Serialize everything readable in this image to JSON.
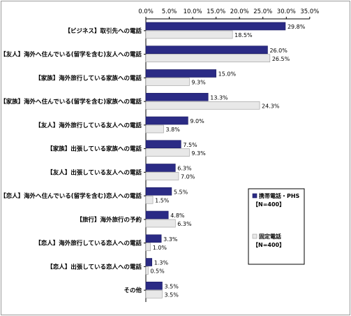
{
  "chart_data": {
    "type": "bar",
    "orientation": "horizontal",
    "categories": [
      "【ビジネス】取引先への電話",
      "【友人】海外へ住んでいる(留学を含む)友人への電話",
      "【家族】海外旅行している家族への電話",
      "【家族】海外へ住んでいる(留学を含む)家族への電話",
      "【友人】海外旅行している友人への電話",
      "【家族】出張している家族への電話",
      "【友人】出張している友人への電話",
      "【恋人】海外へ住んでいる(留学を含む)恋人への電話",
      "【旅行】海外旅行の予約",
      "【恋人】海外旅行している恋人への電話",
      "【恋人】出張している恋人への電話",
      "その他"
    ],
    "series": [
      {
        "name": "携帯電話・PHS【N=400】",
        "legend_line1": "携帯電話・PHS",
        "legend_line2": "【N=400】",
        "color": "#2b2b85",
        "values": [
          29.8,
          26.0,
          15.0,
          13.3,
          9.0,
          7.5,
          6.3,
          5.5,
          4.8,
          3.3,
          1.3,
          3.5
        ],
        "labels": [
          "29.8%",
          "26.0%",
          "15.0%",
          "13.3%",
          "9.0%",
          "7.5%",
          "6.3%",
          "5.5%",
          "4.8%",
          "3.3%",
          "1.3%",
          "3.5%"
        ]
      },
      {
        "name": "固定電話【N=400】",
        "legend_line1": "固定電話",
        "legend_line2": "【N=400】",
        "color": "#e8e8e8",
        "values": [
          18.5,
          26.5,
          9.3,
          24.3,
          3.8,
          9.3,
          7.0,
          1.5,
          6.3,
          1.0,
          0.5,
          3.5
        ],
        "labels": [
          "18.5%",
          "26.5%",
          "9.3%",
          "24.3%",
          "3.8%",
          "9.3%",
          "7.0%",
          "1.5%",
          "6.3%",
          "1.0%",
          "0.5%",
          "3.5%"
        ]
      }
    ],
    "xlim": [
      0,
      35
    ],
    "ticks": [
      0,
      5,
      10,
      15,
      20,
      25,
      30,
      35
    ],
    "tick_labels": [
      "0.0%",
      "5.0%",
      "10.0%",
      "15.0%",
      "20.0%",
      "25.0%",
      "30.0%",
      "35.0%"
    ],
    "xaxis_position": "top",
    "grid": false,
    "legend_position": "right"
  }
}
